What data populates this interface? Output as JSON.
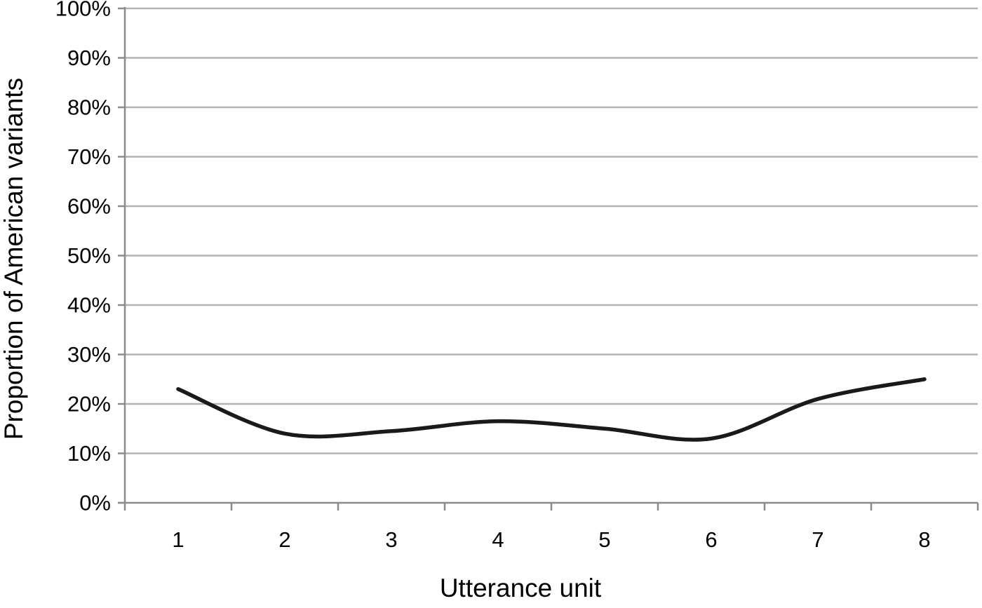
{
  "chart_data": {
    "type": "line",
    "title": "",
    "xlabel": "Utterance unit",
    "ylabel": "Proportion of American variants",
    "categories": [
      1,
      2,
      3,
      4,
      5,
      6,
      7,
      8
    ],
    "x_tick_labels": [
      "1",
      "2",
      "3",
      "4",
      "5",
      "6",
      "7",
      "8"
    ],
    "y_tick_labels": [
      "0%",
      "10%",
      "20%",
      "30%",
      "40%",
      "50%",
      "60%",
      "70%",
      "80%",
      "90%",
      "100%"
    ],
    "y_tick_values": [
      0,
      10,
      20,
      30,
      40,
      50,
      60,
      70,
      80,
      90,
      100
    ],
    "series": [
      {
        "name": "Proportion of American variants",
        "values": [
          23,
          14,
          14.5,
          16.5,
          15,
          13,
          21,
          25
        ]
      }
    ],
    "ylim": [
      0,
      100
    ],
    "grid": "horizontal",
    "legend": "none",
    "smooth": true,
    "colors": {
      "line": "#1a1a1a",
      "gridline": "#b3b3b3",
      "axis": "#8c8c8c",
      "text": "#000000",
      "background": "#ffffff"
    }
  }
}
